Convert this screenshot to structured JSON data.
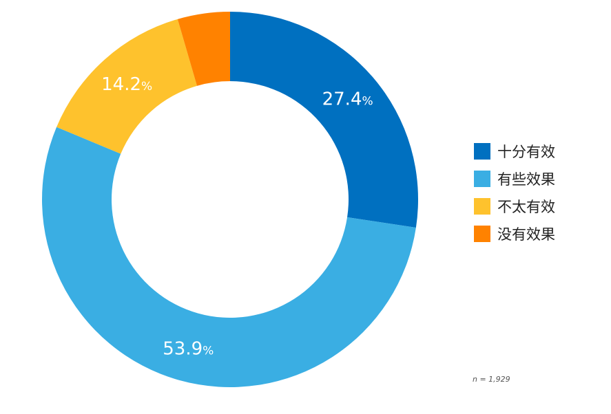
{
  "chart_data": {
    "type": "pie",
    "donut": true,
    "series": [
      {
        "name": "十分有效",
        "value": 27.4,
        "label": "27.4",
        "color": "#0070C0"
      },
      {
        "name": "有些效果",
        "value": 53.9,
        "label": "53.9",
        "color": "#3AAEE3"
      },
      {
        "name": "不太有效",
        "value": 14.2,
        "label": "14.2",
        "color": "#FEC22D"
      },
      {
        "name": "没有效果",
        "value": 4.5,
        "label": "",
        "color": "#FF8200"
      }
    ],
    "percent_sign": "%",
    "legend_position": "right",
    "note": "n = 1,929"
  }
}
